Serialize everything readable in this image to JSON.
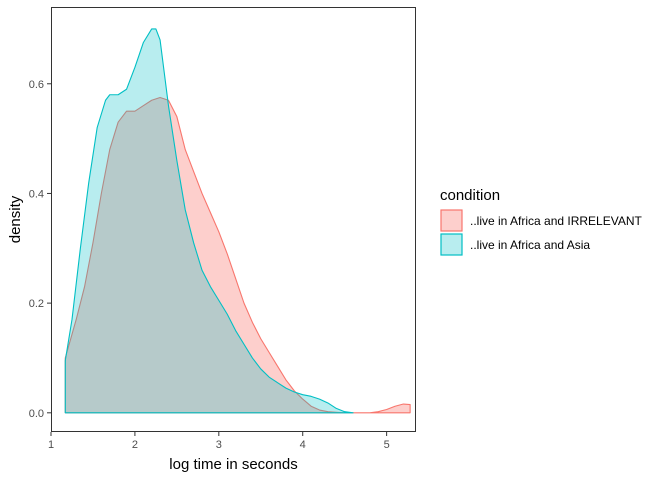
{
  "chart_data": {
    "type": "area",
    "chart_kind": "density",
    "xlabel": "log time in seconds",
    "ylabel": "density",
    "xlim": [
      1.0,
      5.35
    ],
    "ylim": [
      -0.035,
      0.74
    ],
    "xticks": [
      1,
      2,
      3,
      4,
      5
    ],
    "yticks": [
      0.0,
      0.2,
      0.4,
      0.6
    ],
    "ytick_labels": [
      "0.0",
      "0.2",
      "0.4",
      "0.6"
    ],
    "grid": false,
    "legend": {
      "title": "condition",
      "placement": "right"
    },
    "series": [
      {
        "name": "..live in Africa and IRRELEVANT",
        "line_color": "#F8766D",
        "fill_color": "#F8766D",
        "fill_opacity": 0.35,
        "x": [
          1.17,
          1.3,
          1.4,
          1.5,
          1.6,
          1.7,
          1.8,
          1.9,
          2.0,
          2.1,
          2.2,
          2.3,
          2.4,
          2.5,
          2.6,
          2.7,
          2.8,
          2.9,
          3.0,
          3.1,
          3.2,
          3.3,
          3.4,
          3.5,
          3.6,
          3.7,
          3.8,
          3.9,
          4.0,
          4.1,
          4.2,
          4.3,
          4.4,
          4.5,
          4.6,
          4.7,
          4.8,
          4.9,
          5.0,
          5.1,
          5.2,
          5.28
        ],
        "y": [
          0.1,
          0.17,
          0.23,
          0.31,
          0.4,
          0.48,
          0.53,
          0.55,
          0.55,
          0.56,
          0.57,
          0.575,
          0.57,
          0.54,
          0.48,
          0.44,
          0.4,
          0.365,
          0.33,
          0.29,
          0.245,
          0.2,
          0.165,
          0.135,
          0.11,
          0.085,
          0.06,
          0.04,
          0.025,
          0.012,
          0.005,
          0.002,
          0.001,
          0.0,
          0.0,
          0.0,
          0.0,
          0.002,
          0.006,
          0.012,
          0.016,
          0.015
        ]
      },
      {
        "name": "..live in Africa and Asia",
        "line_color": "#00BFC4",
        "fill_color": "#00BFC4",
        "fill_opacity": 0.28,
        "x": [
          1.17,
          1.25,
          1.35,
          1.45,
          1.55,
          1.65,
          1.7,
          1.8,
          1.9,
          2.0,
          2.1,
          2.2,
          2.25,
          2.3,
          2.35,
          2.4,
          2.5,
          2.6,
          2.7,
          2.8,
          2.9,
          3.0,
          3.1,
          3.2,
          3.3,
          3.4,
          3.5,
          3.6,
          3.7,
          3.8,
          3.9,
          4.0,
          4.1,
          4.2,
          4.3,
          4.4,
          4.5,
          4.6
        ],
        "y": [
          0.095,
          0.17,
          0.3,
          0.42,
          0.52,
          0.57,
          0.58,
          0.58,
          0.59,
          0.63,
          0.675,
          0.7,
          0.7,
          0.68,
          0.62,
          0.56,
          0.46,
          0.37,
          0.31,
          0.26,
          0.23,
          0.205,
          0.18,
          0.15,
          0.125,
          0.1,
          0.08,
          0.065,
          0.055,
          0.045,
          0.038,
          0.033,
          0.03,
          0.025,
          0.018,
          0.008,
          0.002,
          0.0
        ]
      }
    ]
  }
}
